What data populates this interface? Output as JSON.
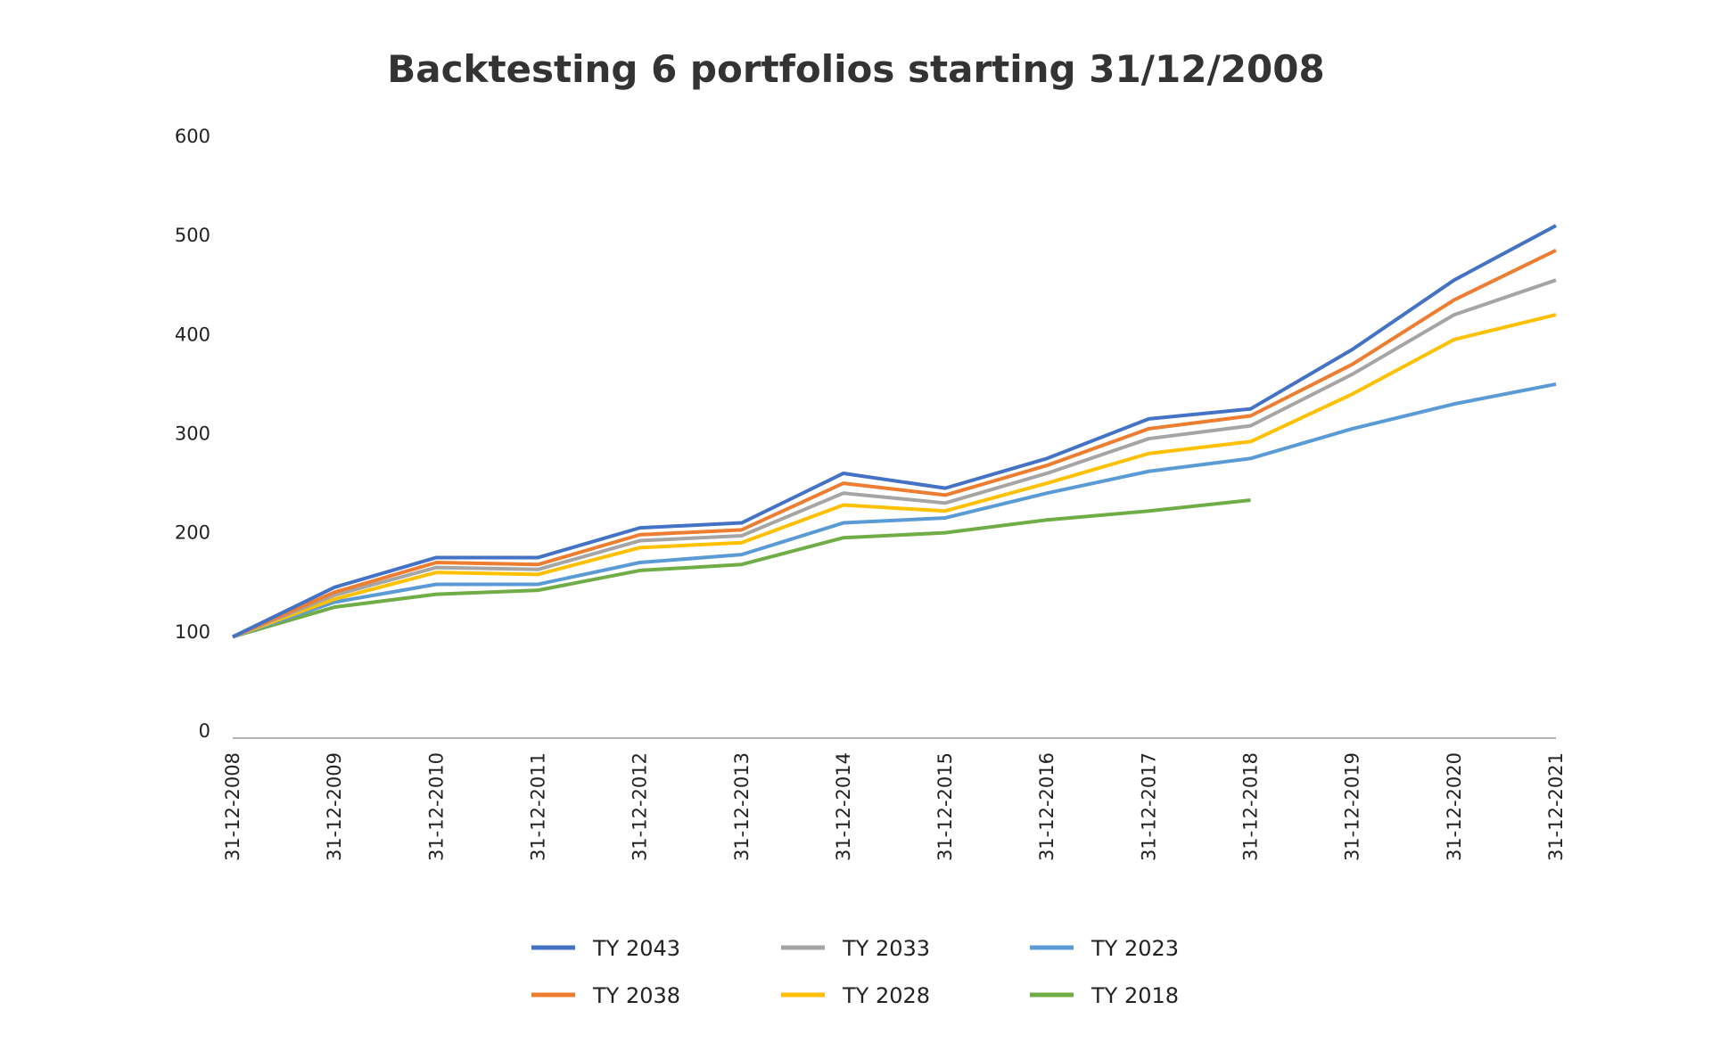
{
  "chart_data": {
    "type": "line",
    "title": "Backtesting 6 portfolios starting 31/12/2008",
    "categories": [
      "31-12-2008",
      "31-12-2009",
      "31-12-2010",
      "31-12-2011",
      "31-12-2012",
      "31-12-2013",
      "31-12-2014",
      "31-12-2015",
      "31-12-2016",
      "31-12-2017",
      "31-12-2018",
      "31-12-2019",
      "31-12-2020",
      "31-12-2021"
    ],
    "ylim": [
      0,
      600
    ],
    "yticks": [
      0,
      100,
      200,
      300,
      400,
      500,
      600
    ],
    "grid": false,
    "series": [
      {
        "name": "TY 2043",
        "color": "#4472c4",
        "values": [
          95,
          145,
          175,
          175,
          205,
          210,
          260,
          245,
          275,
          315,
          325,
          385,
          455,
          510
        ]
      },
      {
        "name": "TY 2038",
        "color": "#ed7d31",
        "values": [
          95,
          140,
          170,
          168,
          198,
          203,
          250,
          238,
          268,
          305,
          318,
          370,
          435,
          485
        ]
      },
      {
        "name": "TY 2033",
        "color": "#a5a5a5",
        "values": [
          95,
          137,
          165,
          163,
          192,
          197,
          240,
          230,
          260,
          295,
          308,
          360,
          420,
          455
        ]
      },
      {
        "name": "TY 2028",
        "color": "#ffc000",
        "values": [
          95,
          133,
          160,
          158,
          185,
          190,
          228,
          222,
          250,
          280,
          292,
          340,
          395,
          420
        ]
      },
      {
        "name": "TY 2023",
        "color": "#5b9bd5",
        "values": [
          95,
          130,
          148,
          148,
          170,
          178,
          210,
          215,
          240,
          262,
          275,
          305,
          330,
          350
        ]
      },
      {
        "name": "TY 2018",
        "color": "#70ad47",
        "values": [
          95,
          125,
          138,
          142,
          162,
          168,
          195,
          200,
          213,
          222,
          233,
          null,
          null,
          null
        ]
      }
    ]
  }
}
